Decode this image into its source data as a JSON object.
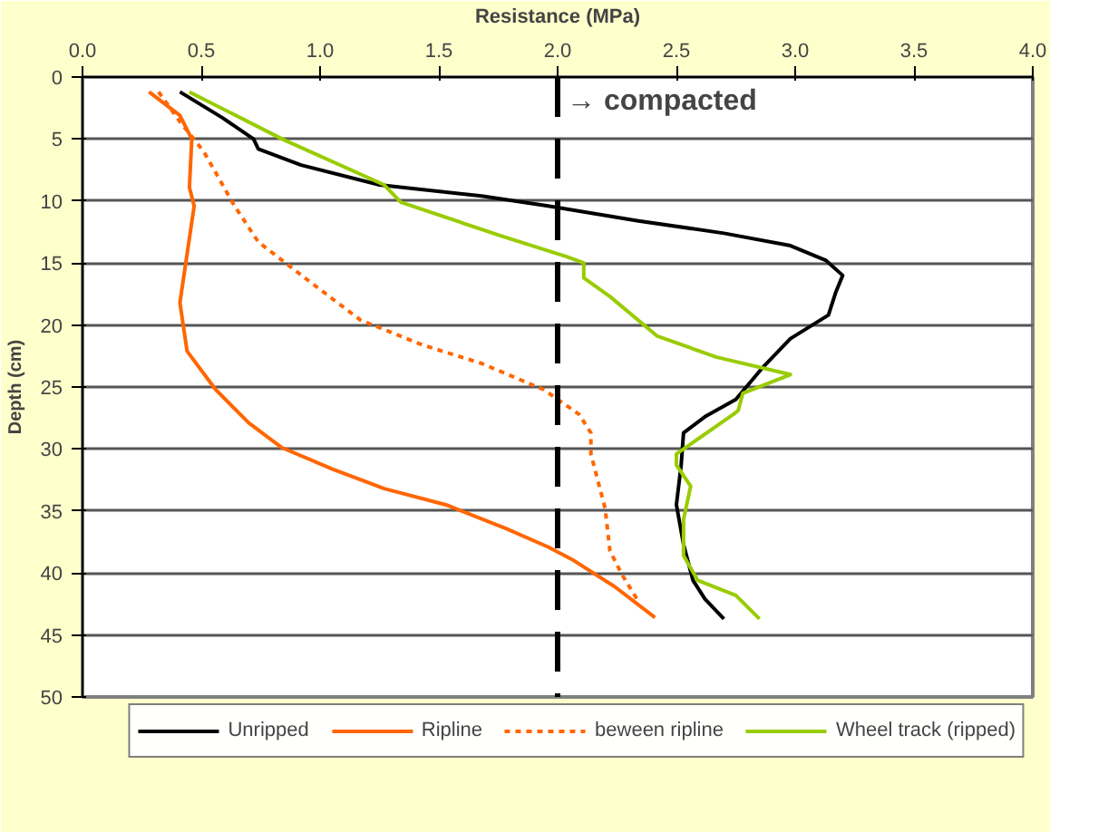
{
  "chart_data": {
    "type": "line",
    "xlabel": "Resistance (MPa)",
    "ylabel": "Depth (cm)",
    "xlim": [
      0.0,
      4.0
    ],
    "xticks": [
      {
        "value": 0,
        "label": "0.0"
      },
      {
        "value": 0.5,
        "label": "0.5"
      },
      {
        "value": 1,
        "label": "1.0"
      },
      {
        "value": 1.5,
        "label": "1.5"
      },
      {
        "value": 2,
        "label": "2.0"
      },
      {
        "value": 2.5,
        "label": "2.5"
      },
      {
        "value": 3,
        "label": "3.0"
      },
      {
        "value": 3.5,
        "label": "3.5"
      },
      {
        "value": 4,
        "label": "4.0"
      }
    ],
    "ylim": [
      50,
      0
    ],
    "yticks": [
      0,
      5,
      10,
      15,
      20,
      25,
      30,
      35,
      40,
      45,
      50
    ],
    "grid": "y",
    "legend": "bottom",
    "marker": "none",
    "series": [
      {
        "name": "Unripped",
        "color": "#000000",
        "line_style": "solid",
        "x": [
          0.41,
          0.59,
          0.72,
          0.74,
          0.92,
          1.25,
          1.68,
          1.96,
          2.34,
          2.7,
          2.98,
          3.13,
          3.2,
          3.17,
          3.14,
          2.98,
          2.86,
          2.75,
          2.62,
          2.53,
          2.52,
          2.5,
          2.53,
          2.57,
          2.62,
          2.7
        ],
        "values": [
          1.2,
          3.3,
          5.0,
          5.8,
          7.1,
          8.7,
          9.6,
          10.4,
          11.6,
          12.6,
          13.6,
          14.8,
          16.0,
          17.4,
          19.2,
          21.1,
          23.5,
          26.0,
          27.4,
          28.7,
          31.3,
          34.5,
          37.7,
          40.6,
          42.1,
          43.7
        ]
      },
      {
        "name": "Ripline",
        "color": "#ff6600",
        "line_style": "solid",
        "x": [
          0.28,
          0.41,
          0.46,
          0.45,
          0.47,
          0.44,
          0.41,
          0.44,
          0.56,
          0.7,
          0.84,
          1.05,
          1.27,
          1.53,
          1.78,
          1.96,
          2.06,
          2.24,
          2.41
        ],
        "values": [
          1.2,
          3.1,
          5.0,
          8.9,
          10.4,
          14.3,
          18.2,
          22.1,
          25.2,
          27.9,
          29.9,
          31.6,
          33.2,
          34.5,
          36.4,
          37.9,
          38.9,
          41.1,
          43.6
        ]
      },
      {
        "name": "beween ripline",
        "color": "#ff6600",
        "line_style": "dashed",
        "x": [
          0.32,
          0.41,
          0.51,
          0.64,
          0.74,
          0.97,
          1.17,
          1.43,
          1.68,
          1.94,
          2.09,
          2.14,
          2.14,
          2.2,
          2.22,
          2.27,
          2.34
        ],
        "values": [
          1.2,
          3.6,
          6.0,
          10.4,
          13.3,
          16.7,
          19.6,
          21.6,
          23.1,
          25.2,
          27.2,
          28.7,
          30.4,
          34.8,
          38.2,
          40.1,
          42.3
        ]
      },
      {
        "name": "Wheel track (ripped)",
        "color": "#99cc00",
        "line_style": "solid",
        "x": [
          0.45,
          0.84,
          1.27,
          1.34,
          1.76,
          2.04,
          2.11,
          2.11,
          2.22,
          2.42,
          2.67,
          2.98,
          2.78,
          2.76,
          2.74,
          2.5,
          2.5,
          2.56,
          2.53,
          2.53,
          2.59,
          2.75,
          2.85
        ],
        "values": [
          1.2,
          5.0,
          8.7,
          10.1,
          12.8,
          14.5,
          15.0,
          16.2,
          17.7,
          20.9,
          22.6,
          24.0,
          25.5,
          26.9,
          27.2,
          30.4,
          31.3,
          33.0,
          35.7,
          38.6,
          40.6,
          41.8,
          43.7
        ]
      }
    ],
    "ref_lines": [
      {
        "axis": "x",
        "value": 2.0,
        "label": "→ compacted",
        "color": "#000000",
        "line_style": "dashed"
      }
    ]
  }
}
